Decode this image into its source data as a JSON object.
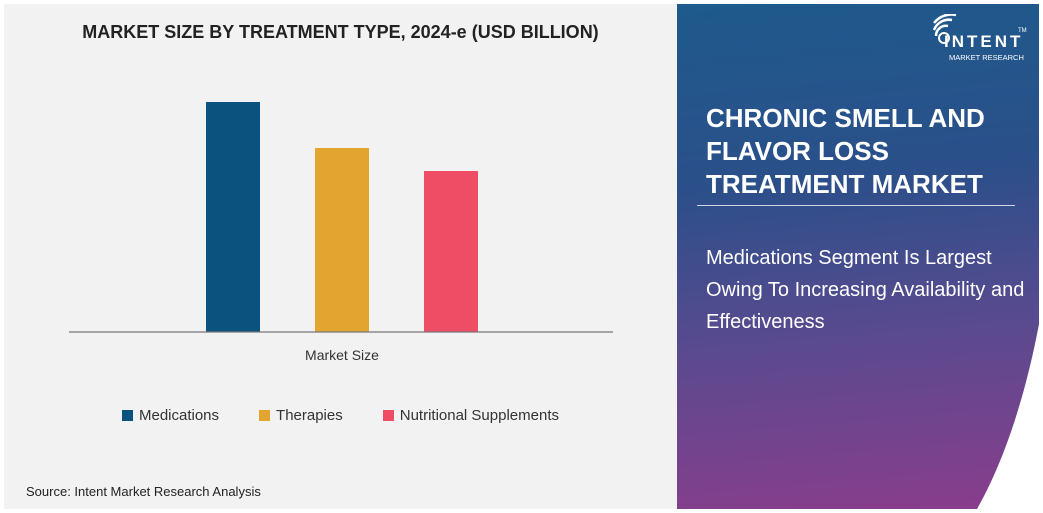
{
  "chart_data": {
    "type": "bar",
    "title": "MARKET SIZE BY TREATMENT TYPE, 2024-e (USD BILLION)",
    "categories": [
      "Market Size"
    ],
    "xlabel": "",
    "ylabel": "",
    "ylim": [
      0,
      100
    ],
    "grid": false,
    "legend_position": "bottom",
    "series": [
      {
        "name": "Medications",
        "values": [
          100
        ],
        "color": "#0b537e"
      },
      {
        "name": "Therapies",
        "values": [
          80
        ],
        "color": "#e1a530"
      },
      {
        "name": "Nutritional Supplements",
        "values": [
          70
        ],
        "color": "#ef4d66"
      }
    ]
  },
  "source": "Source: Intent Market Research Analysis",
  "logo": {
    "brand": "INTENT",
    "sub": "MARKET RESEARCH",
    "tm": "TM"
  },
  "panel": {
    "heading": "CHRONIC SMELL AND FLAVOR LOSS TREATMENT MARKET",
    "subtext": "Medications Segment Is Largest Owing To Increasing Availability and Effectiveness"
  }
}
